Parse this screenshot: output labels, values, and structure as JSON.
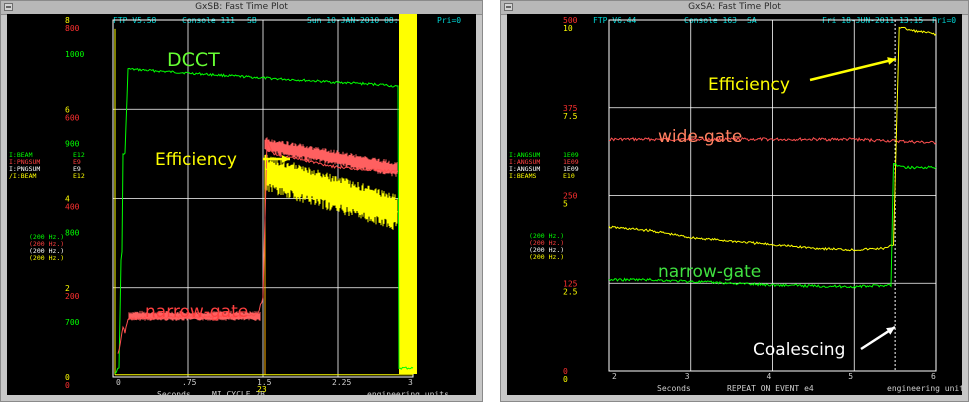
{
  "left_window": {
    "title": "GxSB: Fast Time Plot",
    "header": {
      "version": "FTP V5.58",
      "console": "Console 111",
      "slot": "SB",
      "date": "Sun 10-JAN-2010 08:26",
      "pri": "Pri=0"
    },
    "axis_scales": [
      {
        "color": "#ffff00",
        "labels": [
          "8",
          "6",
          "4",
          "2",
          "0"
        ]
      },
      {
        "color": "#ff3030",
        "labels": [
          "800",
          "600",
          "400",
          "200",
          "0"
        ]
      },
      {
        "color": "#00ff00",
        "labels": [
          "1000",
          "900",
          "800",
          "700",
          "600"
        ]
      }
    ],
    "legend": [
      {
        "name": "I:BEAM",
        "unit": "E12",
        "color": "#00ff00"
      },
      {
        "name": "I:PNGSUM",
        "unit": "E9",
        "color": "#ff4040"
      },
      {
        "name": "I:PNGSUM",
        "unit": "E9",
        "color": "#ffffff"
      },
      {
        "name": "/I:BEAM",
        "unit": "E12",
        "color": "#ffff00"
      }
    ],
    "rates": [
      {
        "text": "(200  Hz.)",
        "color": "#00ff00"
      },
      {
        "text": "(200  Hz.)",
        "color": "#ff4040"
      },
      {
        "text": "(200  Hz.)",
        "color": "#ffffff"
      },
      {
        "text": "(200  Hz.)",
        "color": "#ffff00"
      }
    ],
    "x_ticks": [
      "0",
      ".75",
      "1.5",
      "2.25",
      "3"
    ],
    "x_marker": "23",
    "footer": {
      "xlabel": "Seconds",
      "event": "MI_CYCLE  2B",
      "units": "engineering units"
    },
    "annotations": {
      "dcct": "DCCT",
      "efficiency": "Efficiency",
      "narrow_gate": "narrow-gate"
    }
  },
  "right_window": {
    "title": "GxSA: Fast Time Plot",
    "header": {
      "version": "FTP V6.44",
      "console": "Console 163",
      "slot": "SA",
      "date": "Fri 18-JUN-2011 13:15",
      "pri": "Pri=0"
    },
    "axis_scales": [
      {
        "color": "#ff3030",
        "labels": [
          "500",
          "375",
          "250",
          "125",
          "0"
        ]
      },
      {
        "color": "#ffff00",
        "labels": [
          "10",
          "7.5",
          "5",
          "2.5",
          "0"
        ]
      }
    ],
    "legend": [
      {
        "name": "I:ANGSUM",
        "unit": "1E09",
        "color": "#00ff00"
      },
      {
        "name": "I:ANGSUM",
        "unit": "1E09",
        "color": "#ff4040"
      },
      {
        "name": "I:ANGSUM",
        "unit": "1E09",
        "color": "#ffffff"
      },
      {
        "name": "I:BEAMS",
        "unit": "E10",
        "color": "#ffff00"
      }
    ],
    "rates": [
      {
        "text": "(200  Hz.)",
        "color": "#00ff00"
      },
      {
        "text": "(200  Hz.)",
        "color": "#ff4040"
      },
      {
        "text": "(200  Hz.)",
        "color": "#ffffff"
      },
      {
        "text": "(200  Hz.)",
        "color": "#ffff00"
      }
    ],
    "x_ticks": [
      "2",
      "3",
      "4",
      "5",
      "6"
    ],
    "footer": {
      "xlabel": "Seconds",
      "event": "REPEAT ON EVENT e4",
      "units": "engineering units"
    },
    "annotations": {
      "efficiency": "Efficiency",
      "wide_gate": "wide-gate",
      "narrow_gate": "narrow-gate",
      "coalescing": "Coalescing"
    }
  },
  "chart_data": [
    {
      "type": "line",
      "xlabel": "Seconds",
      "xlim": [
        0,
        3
      ],
      "ylim": [
        0,
        8
      ],
      "grid": true,
      "series": [
        {
          "name": "DCCT",
          "color": "#00ff00",
          "x": [
            0.02,
            0.06,
            0.08,
            0.09,
            0.1,
            0.11,
            0.12,
            0.15,
            1.5,
            1.9,
            2.25,
            2.7,
            2.85,
            2.86,
            3.0
          ],
          "y": [
            0.1,
            0.2,
            2.6,
            2.8,
            5.0,
            5.0,
            5.0,
            6.9,
            6.7,
            6.65,
            6.6,
            6.55,
            6.5,
            0.2,
            0.2
          ]
        },
        {
          "name": "narrow-gate",
          "color": "#ff5050",
          "x": [
            0.05,
            0.1,
            0.12,
            0.15,
            0.75,
            1.2,
            1.45,
            1.5,
            1.54,
            1.6,
            2.25,
            2.85
          ],
          "y": [
            0.5,
            1.1,
            1.0,
            1.3,
            1.35,
            1.35,
            1.4,
            1.8,
            5.3,
            5.0,
            4.7,
            4.6
          ]
        },
        {
          "name": "Efficiency",
          "color": "#ffff00",
          "x": [
            1.52,
            1.6,
            1.9,
            2.25,
            2.6,
            2.85
          ],
          "y": [
            4.7,
            4.5,
            4.2,
            4.0,
            3.8,
            3.7
          ]
        }
      ]
    },
    {
      "type": "line",
      "xlabel": "Seconds",
      "xlim": [
        2,
        6
      ],
      "ylim": [
        0,
        10
      ],
      "grid": true,
      "series": [
        {
          "name": "wide-gate",
          "color": "#ff5050",
          "x": [
            2.0,
            3.0,
            4.0,
            5.0,
            5.5,
            6.0
          ],
          "y": [
            6.6,
            6.6,
            6.6,
            6.6,
            6.55,
            6.5
          ]
        },
        {
          "name": "Efficiency",
          "color": "#ffff00",
          "x": [
            2.0,
            2.5,
            3.0,
            3.5,
            4.0,
            4.5,
            5.0,
            5.4,
            5.48,
            5.55,
            5.7,
            6.0
          ],
          "y": [
            4.1,
            4.0,
            3.8,
            3.7,
            3.6,
            3.5,
            3.45,
            3.5,
            3.6,
            9.8,
            9.7,
            9.6
          ]
        },
        {
          "name": "narrow-gate",
          "color": "#00ff00",
          "x": [
            2.0,
            2.5,
            3.0,
            4.0,
            5.0,
            5.45,
            5.48,
            5.6,
            6.0
          ],
          "y": [
            2.6,
            2.6,
            2.55,
            2.45,
            2.4,
            2.45,
            5.9,
            5.8,
            5.8
          ]
        }
      ]
    }
  ]
}
